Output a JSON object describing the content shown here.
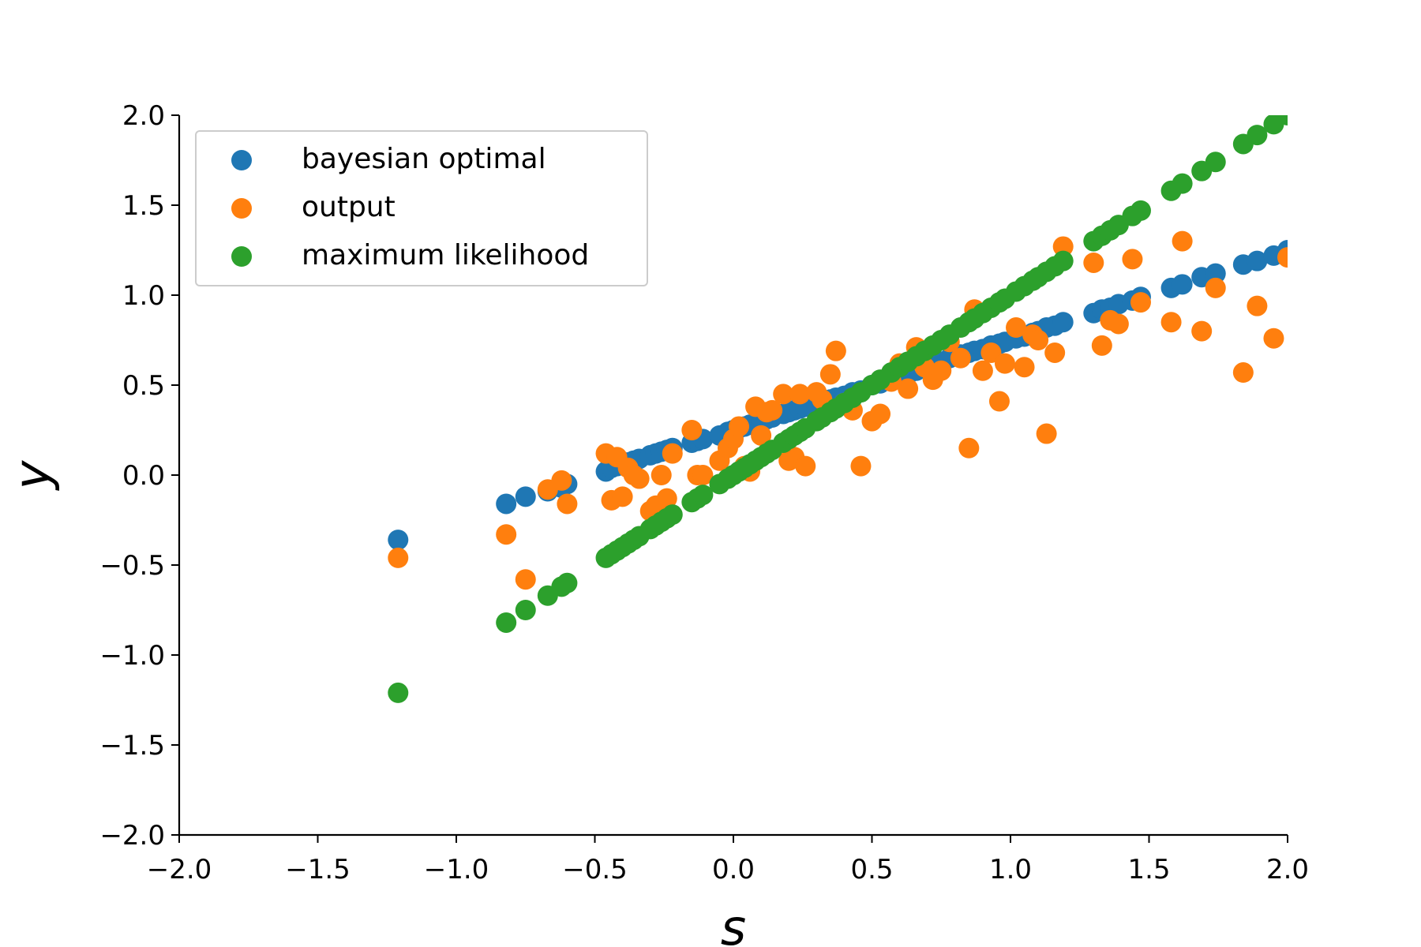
{
  "chart_data": {
    "type": "scatter",
    "title": "",
    "xlabel": "s",
    "ylabel": "y",
    "xlim": [
      -2.0,
      2.0
    ],
    "ylim": [
      -2.0,
      2.0
    ],
    "xticks": [
      "−2.0",
      "−1.5",
      "−1.0",
      "−0.5",
      "0.0",
      "0.5",
      "1.0",
      "1.5",
      "2.0"
    ],
    "yticks": [
      "−2.0",
      "−1.5",
      "−1.0",
      "−0.5",
      "0.0",
      "0.5",
      "1.0",
      "1.5",
      "2.0"
    ],
    "xtick_values": [
      -2.0,
      -1.5,
      -1.0,
      -0.5,
      0.0,
      0.5,
      1.0,
      1.5,
      2.0
    ],
    "ytick_values": [
      -2.0,
      -1.5,
      -1.0,
      -0.5,
      0.0,
      0.5,
      1.0,
      1.5,
      2.0
    ],
    "grid": false,
    "legend_position": "top-left",
    "x": [
      -1.21,
      -0.82,
      -0.75,
      -0.67,
      -0.62,
      -0.6,
      -0.46,
      -0.44,
      -0.42,
      -0.4,
      -0.38,
      -0.36,
      -0.34,
      -0.3,
      -0.28,
      -0.26,
      -0.24,
      -0.22,
      -0.15,
      -0.13,
      -0.11,
      -0.05,
      -0.02,
      0.0,
      0.02,
      0.04,
      0.06,
      0.08,
      0.1,
      0.12,
      0.14,
      0.18,
      0.2,
      0.22,
      0.24,
      0.26,
      0.3,
      0.32,
      0.35,
      0.37,
      0.4,
      0.43,
      0.46,
      0.5,
      0.53,
      0.57,
      0.6,
      0.63,
      0.66,
      0.69,
      0.72,
      0.75,
      0.78,
      0.82,
      0.85,
      0.87,
      0.9,
      0.93,
      0.96,
      0.98,
      1.02,
      1.05,
      1.08,
      1.1,
      1.13,
      1.16,
      1.19,
      1.3,
      1.33,
      1.36,
      1.39,
      1.44,
      1.47,
      1.58,
      1.62,
      1.69,
      1.74,
      1.84,
      1.89,
      1.95,
      2.0
    ],
    "series": [
      {
        "name": "bayesian optimal",
        "color": "#1f77b4",
        "values": [
          -0.36,
          -0.16,
          -0.12,
          -0.09,
          -0.07,
          -0.05,
          0.02,
          0.04,
          0.05,
          0.06,
          0.07,
          0.08,
          0.09,
          0.11,
          0.12,
          0.13,
          0.14,
          0.15,
          0.18,
          0.19,
          0.2,
          0.22,
          0.24,
          0.25,
          0.26,
          0.27,
          0.28,
          0.29,
          0.3,
          0.31,
          0.32,
          0.34,
          0.35,
          0.36,
          0.37,
          0.38,
          0.39,
          0.4,
          0.42,
          0.43,
          0.44,
          0.46,
          0.47,
          0.5,
          0.51,
          0.53,
          0.55,
          0.56,
          0.58,
          0.6,
          0.62,
          0.63,
          0.65,
          0.67,
          0.68,
          0.69,
          0.7,
          0.72,
          0.73,
          0.74,
          0.76,
          0.77,
          0.79,
          0.8,
          0.82,
          0.83,
          0.85,
          0.9,
          0.92,
          0.93,
          0.95,
          0.97,
          0.99,
          1.04,
          1.06,
          1.1,
          1.12,
          1.17,
          1.19,
          1.22,
          1.25
        ]
      },
      {
        "name": "output",
        "color": "#ff7f0e",
        "values": [
          -0.46,
          -0.33,
          -0.58,
          -0.08,
          -0.03,
          -0.16,
          0.12,
          -0.14,
          0.1,
          -0.12,
          0.04,
          0.0,
          -0.02,
          -0.2,
          -0.17,
          0.0,
          -0.13,
          0.12,
          0.25,
          0.0,
          0.0,
          0.08,
          0.15,
          0.2,
          0.27,
          0.05,
          0.02,
          0.38,
          0.22,
          0.35,
          0.36,
          0.45,
          0.08,
          0.1,
          0.45,
          0.05,
          0.46,
          0.42,
          0.56,
          0.69,
          0.4,
          0.36,
          0.05,
          0.3,
          0.34,
          0.52,
          0.62,
          0.48,
          0.71,
          0.6,
          0.53,
          0.58,
          0.74,
          0.65,
          0.15,
          0.92,
          0.58,
          0.68,
          0.41,
          0.62,
          0.82,
          0.6,
          0.78,
          0.75,
          0.23,
          0.68,
          1.27,
          1.18,
          0.72,
          0.86,
          0.84,
          1.2,
          0.96,
          0.85,
          1.3,
          0.8,
          1.04,
          0.57,
          0.94,
          0.76,
          1.21
        ]
      },
      {
        "name": "maximum likelihood",
        "color": "#2ca02c",
        "values": [
          -1.21,
          -0.82,
          -0.75,
          -0.67,
          -0.62,
          -0.6,
          -0.46,
          -0.44,
          -0.42,
          -0.4,
          -0.38,
          -0.36,
          -0.34,
          -0.3,
          -0.28,
          -0.26,
          -0.24,
          -0.22,
          -0.15,
          -0.13,
          -0.11,
          -0.05,
          -0.02,
          0.0,
          0.02,
          0.04,
          0.06,
          0.08,
          0.1,
          0.12,
          0.14,
          0.18,
          0.2,
          0.22,
          0.24,
          0.26,
          0.3,
          0.32,
          0.35,
          0.37,
          0.4,
          0.43,
          0.46,
          0.5,
          0.53,
          0.57,
          0.6,
          0.63,
          0.66,
          0.69,
          0.72,
          0.75,
          0.78,
          0.82,
          0.85,
          0.87,
          0.9,
          0.93,
          0.96,
          0.98,
          1.02,
          1.05,
          1.08,
          1.1,
          1.13,
          1.16,
          1.19,
          1.3,
          1.33,
          1.36,
          1.39,
          1.44,
          1.47,
          1.58,
          1.62,
          1.69,
          1.74,
          1.84,
          1.89,
          1.95,
          2.0
        ]
      }
    ]
  }
}
